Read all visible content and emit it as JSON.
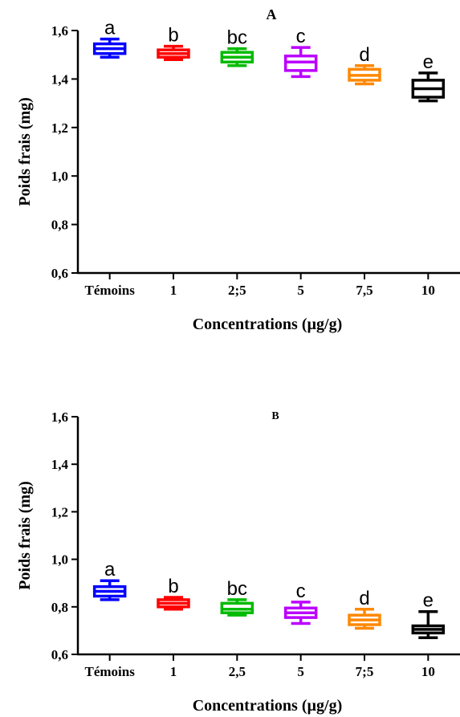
{
  "chart_data": [
    {
      "type": "box",
      "panel_label": "A",
      "ylabel": "Poids frais (mg)",
      "xlabel": "Concentrations (µg/g)",
      "ylim": [
        0.6,
        1.6
      ],
      "yticks": [
        "0,6",
        "0,8",
        "1,0",
        "1,2",
        "1,4",
        "1,6"
      ],
      "ytick_values": [
        0.6,
        0.8,
        1.0,
        1.2,
        1.4,
        1.6
      ],
      "categories": [
        "Témoins",
        "1",
        "2;5",
        "5",
        "7,5",
        "10"
      ],
      "boxes": [
        {
          "min": 1.49,
          "q1": 1.505,
          "median": 1.525,
          "q3": 1.545,
          "max": 1.565,
          "color": "#0000ff",
          "label": "a"
        },
        {
          "min": 1.48,
          "q1": 1.49,
          "median": 1.505,
          "q3": 1.52,
          "max": 1.535,
          "color": "#ff0000",
          "label": "b"
        },
        {
          "min": 1.455,
          "q1": 1.47,
          "median": 1.49,
          "q3": 1.51,
          "max": 1.525,
          "color": "#00bb00",
          "label": "bc"
        },
        {
          "min": 1.41,
          "q1": 1.435,
          "median": 1.47,
          "q3": 1.495,
          "max": 1.53,
          "color": "#bb00ff",
          "label": "c"
        },
        {
          "min": 1.38,
          "q1": 1.395,
          "median": 1.415,
          "q3": 1.44,
          "max": 1.455,
          "color": "#ff8800",
          "label": "d"
        },
        {
          "min": 1.31,
          "q1": 1.325,
          "median": 1.36,
          "q3": 1.395,
          "max": 1.425,
          "color": "#000000",
          "label": "e"
        }
      ]
    },
    {
      "type": "box",
      "panel_label": "B",
      "ylabel": "Poids frais (mg)",
      "xlabel": "Concentrations (µg/g)",
      "ylim": [
        0.6,
        1.6
      ],
      "yticks": [
        "0,6",
        "0,8",
        "1,0",
        "1,2",
        "1,4",
        "1,6"
      ],
      "ytick_values": [
        0.6,
        0.8,
        1.0,
        1.2,
        1.4,
        1.6
      ],
      "categories": [
        "Témoins",
        "1",
        "2,5",
        "5",
        "7;5",
        "10"
      ],
      "boxes": [
        {
          "min": 0.83,
          "q1": 0.845,
          "median": 0.865,
          "q3": 0.885,
          "max": 0.91,
          "color": "#0000ff",
          "label": "a"
        },
        {
          "min": 0.79,
          "q1": 0.8,
          "median": 0.815,
          "q3": 0.83,
          "max": 0.84,
          "color": "#ff0000",
          "label": "b"
        },
        {
          "min": 0.765,
          "q1": 0.775,
          "median": 0.79,
          "q3": 0.815,
          "max": 0.83,
          "color": "#00bb00",
          "label": "bc"
        },
        {
          "min": 0.73,
          "q1": 0.755,
          "median": 0.775,
          "q3": 0.795,
          "max": 0.82,
          "color": "#bb00ff",
          "label": "c"
        },
        {
          "min": 0.71,
          "q1": 0.725,
          "median": 0.745,
          "q3": 0.765,
          "max": 0.79,
          "color": "#ff8800",
          "label": "d"
        },
        {
          "min": 0.67,
          "q1": 0.69,
          "median": 0.705,
          "q3": 0.72,
          "max": 0.78,
          "color": "#000000",
          "label": "e"
        }
      ]
    }
  ]
}
